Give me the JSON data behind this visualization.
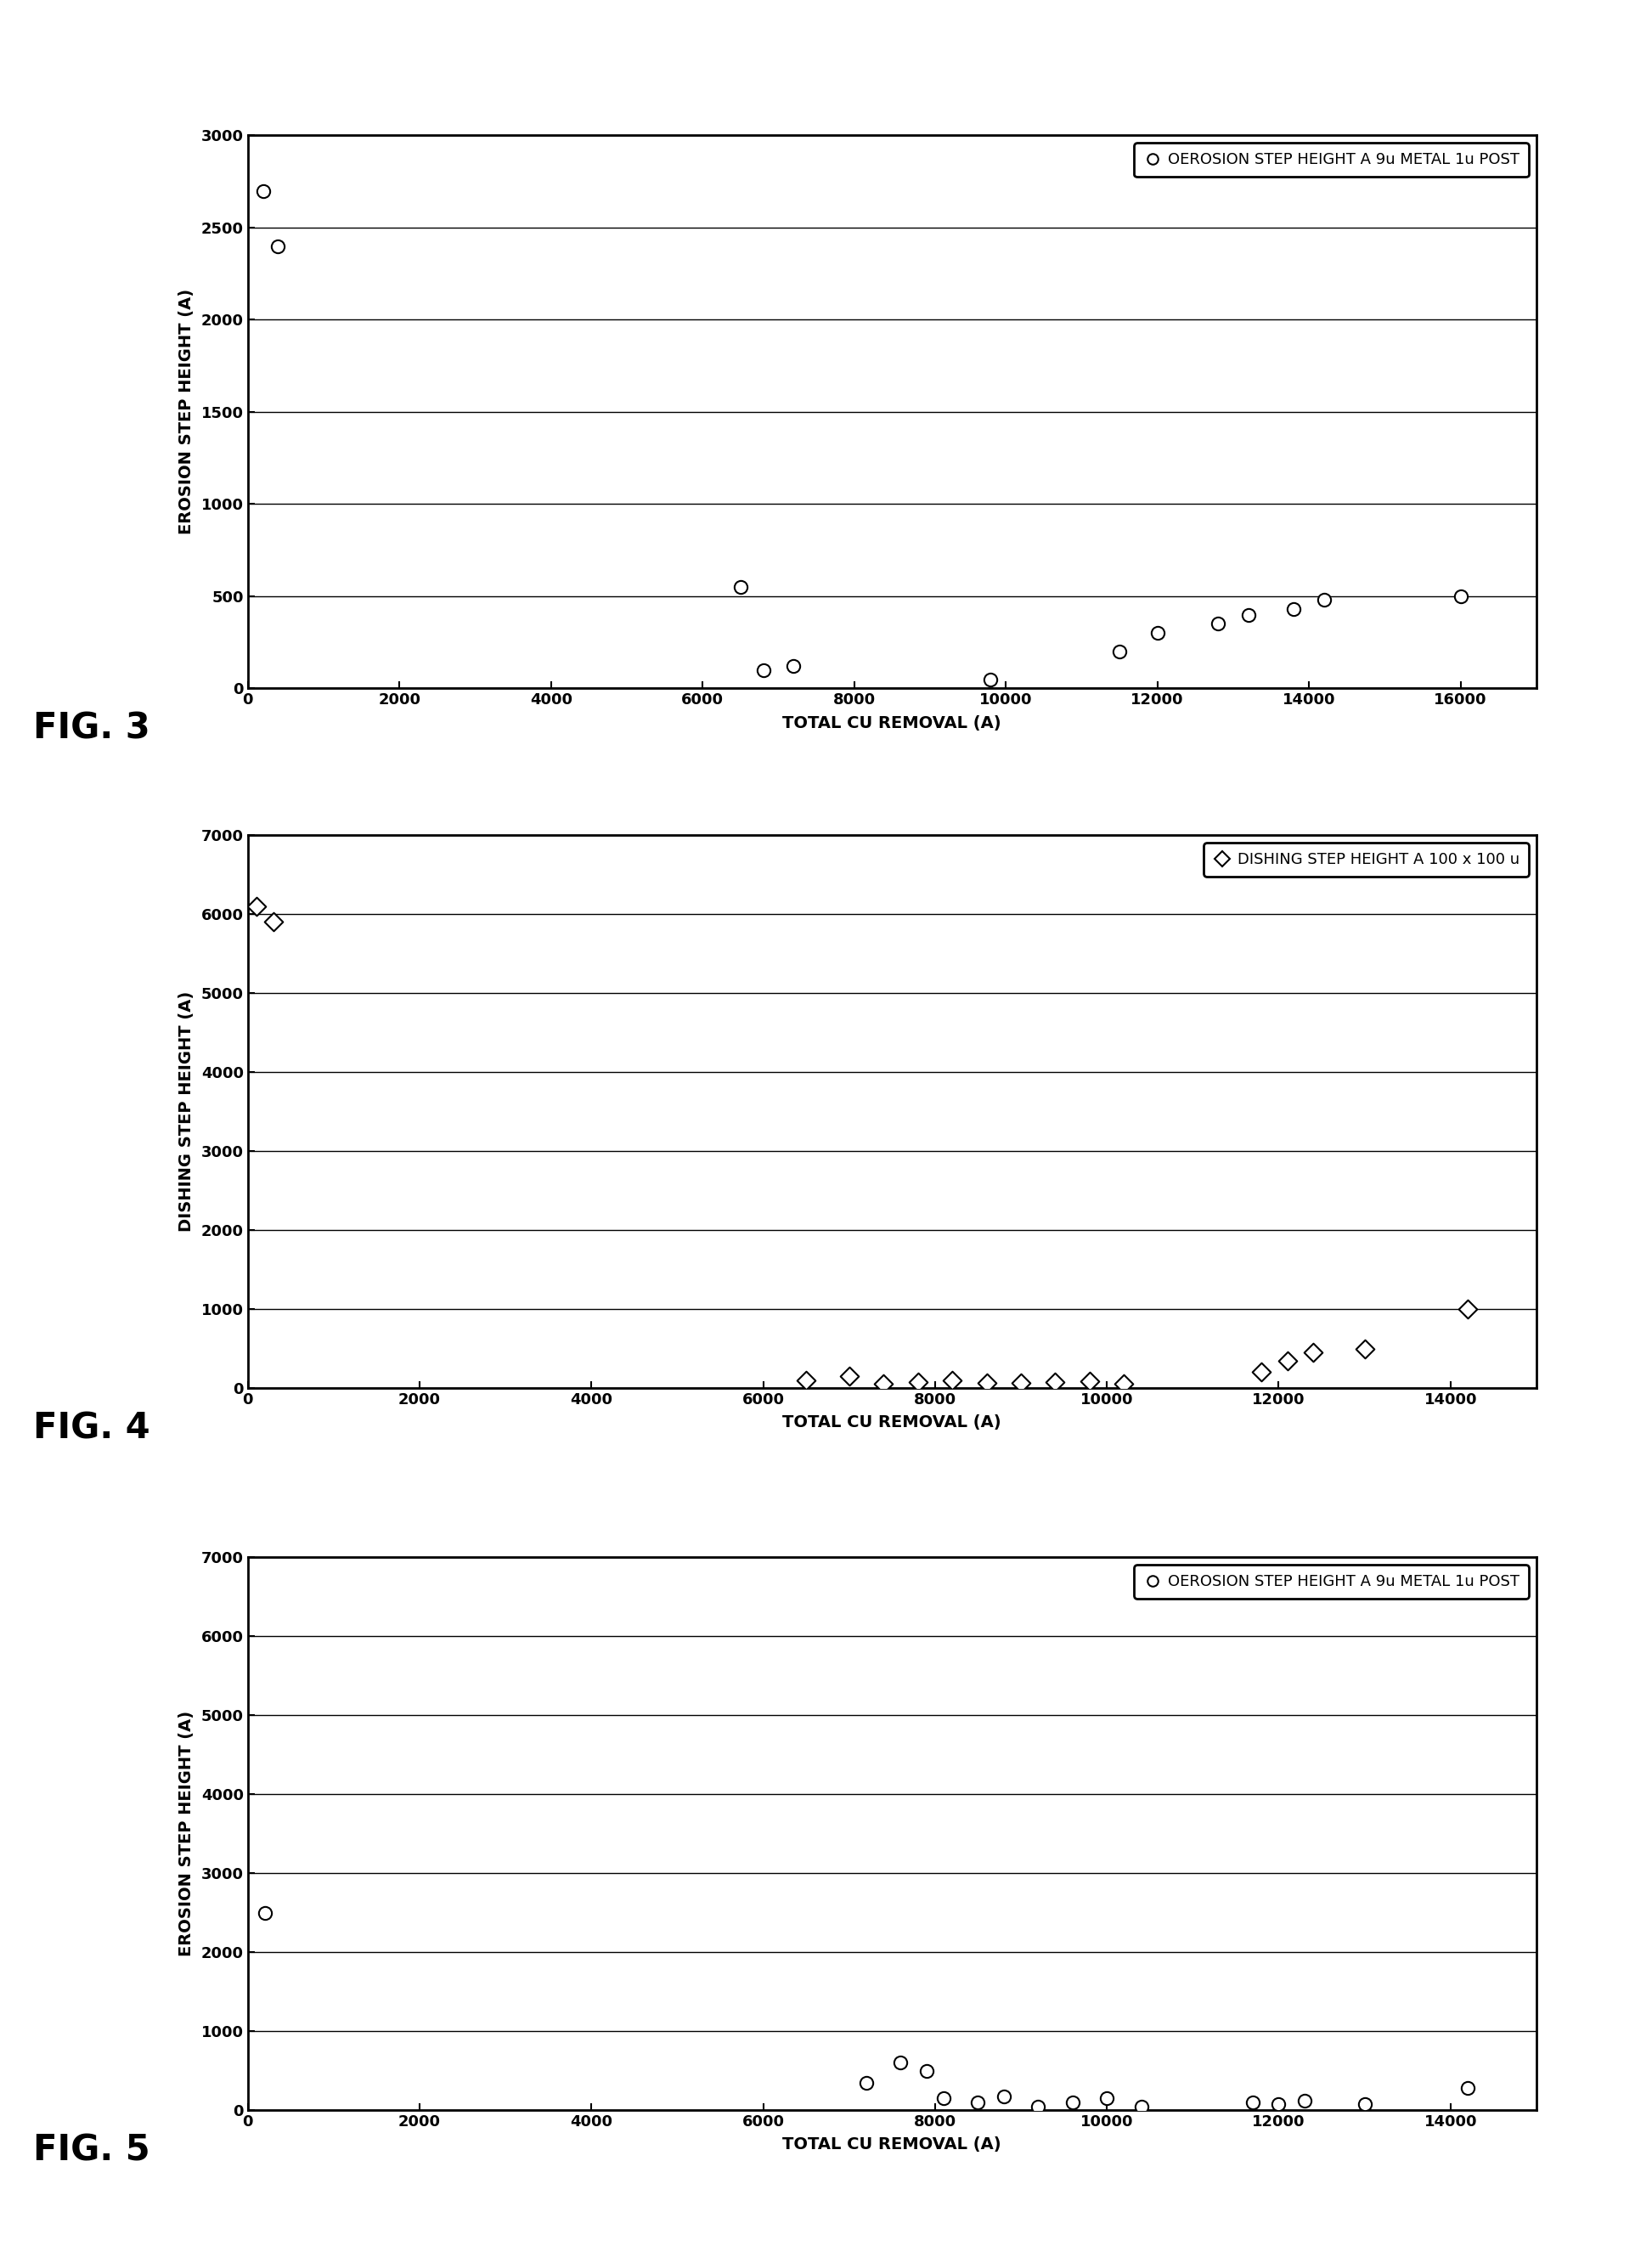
{
  "fig3": {
    "title": "OEROSION STEP HEIGHT A 9u METAL 1u POST",
    "xlabel": "TOTAL CU REMOVAL (A)",
    "ylabel": "EROSION STEP HEIGHT (A)",
    "fignum": "FIG. 3",
    "ylim": [
      0,
      3000
    ],
    "xlim": [
      0,
      17000
    ],
    "yticks": [
      0,
      500,
      1000,
      1500,
      2000,
      2500,
      3000
    ],
    "xticks": [
      0,
      2000,
      4000,
      6000,
      8000,
      10000,
      12000,
      14000,
      16000
    ],
    "x": [
      200,
      400,
      6500,
      6800,
      7200,
      9800,
      11500,
      12000,
      12800,
      13200,
      13800,
      14200,
      16000
    ],
    "y": [
      2700,
      2400,
      550,
      100,
      120,
      50,
      200,
      300,
      350,
      400,
      430,
      480,
      500
    ],
    "marker": "o"
  },
  "fig4": {
    "title": "DISHING STEP HEIGHT A 100 x 100 u",
    "xlabel": "TOTAL CU REMOVAL (A)",
    "ylabel": "DISHING STEP HEIGHT (A)",
    "fignum": "FIG. 4",
    "ylim": [
      0,
      7000
    ],
    "xlim": [
      0,
      15000
    ],
    "yticks": [
      0,
      1000,
      2000,
      3000,
      4000,
      5000,
      6000,
      7000
    ],
    "xticks": [
      0,
      2000,
      4000,
      6000,
      8000,
      10000,
      12000,
      14000
    ],
    "x": [
      100,
      300,
      6500,
      7000,
      7400,
      7800,
      8200,
      8600,
      9000,
      9400,
      9800,
      10200,
      11800,
      12100,
      12400,
      13000,
      14200
    ],
    "y": [
      6100,
      5900,
      100,
      150,
      50,
      80,
      100,
      70,
      60,
      80,
      90,
      50,
      200,
      350,
      450,
      500,
      1000
    ],
    "marker": "D"
  },
  "fig5": {
    "title": "OEROSION STEP HEIGHT A 9u METAL 1u POST",
    "xlabel": "TOTAL CU REMOVAL (A)",
    "ylabel": "EROSION STEP HEIGHT (A)",
    "fignum": "FIG. 5",
    "ylim": [
      0,
      7000
    ],
    "xlim": [
      0,
      15000
    ],
    "yticks": [
      0,
      1000,
      2000,
      3000,
      4000,
      5000,
      6000,
      7000
    ],
    "xticks": [
      0,
      2000,
      4000,
      6000,
      8000,
      10000,
      12000,
      14000
    ],
    "x": [
      200,
      7200,
      7600,
      7900,
      8100,
      8500,
      8800,
      9200,
      9600,
      10000,
      10400,
      11700,
      12000,
      12300,
      13000,
      14200
    ],
    "y": [
      2500,
      350,
      600,
      500,
      150,
      100,
      180,
      50,
      100,
      150,
      50,
      100,
      80,
      120,
      80,
      280
    ],
    "marker": "o"
  },
  "background_color": "#ffffff",
  "marker_color": "white",
  "marker_edge_color": "#000000",
  "marker_size": 11,
  "marker_linewidth": 1.5,
  "label_font_size": 14,
  "tick_font_size": 13,
  "legend_font_size": 13,
  "fignum_font_size": 30
}
